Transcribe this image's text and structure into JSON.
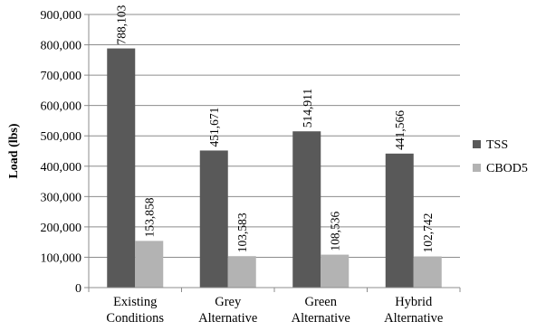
{
  "chart_data": {
    "type": "bar",
    "title": "",
    "xlabel": "",
    "ylabel": "Load (lbs)",
    "categories": [
      [
        "Existing",
        "Conditions"
      ],
      [
        "Grey",
        "Alternative"
      ],
      [
        "Green",
        "Alternative"
      ],
      [
        "Hybrid",
        "Alternative"
      ]
    ],
    "series": [
      {
        "name": "TSS",
        "color": "#595959",
        "values": [
          788103,
          451671,
          514911,
          441566
        ],
        "labels": [
          "788,103",
          "451,671",
          "514,911",
          "441,566"
        ]
      },
      {
        "name": "CBOD5",
        "color": "#b3b3b3",
        "values": [
          153858,
          103583,
          108536,
          102742
        ],
        "labels": [
          "153,858",
          "103,583",
          "108,536",
          "102,742"
        ]
      }
    ],
    "ylim": [
      0,
      900000
    ],
    "yticks": [
      0,
      100000,
      200000,
      300000,
      400000,
      500000,
      600000,
      700000,
      800000,
      900000
    ],
    "ytick_labels": [
      "0",
      "100,000",
      "200,000",
      "300,000",
      "400,000",
      "500,000",
      "600,000",
      "700,000",
      "800,000",
      "900,000"
    ],
    "grid": true,
    "legend_position": "right"
  }
}
